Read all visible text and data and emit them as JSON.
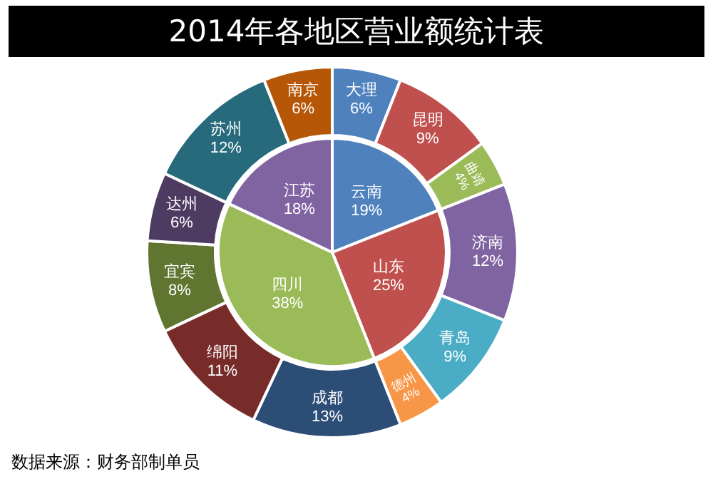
{
  "chart_data": [
    {
      "type": "pie",
      "title": "2014年各地区营业额统计表",
      "annotations": [
        "数据来源：财务部制单员"
      ],
      "legend": false,
      "categories": [
        "云南",
        "山东",
        "四川",
        "江苏"
      ],
      "values": [
        19,
        25,
        38,
        18
      ],
      "value_labels": [
        "19%",
        "25%",
        "38%",
        "18%"
      ],
      "colors": [
        "#4f81bd",
        "#c0504d",
        "#9bbb59",
        "#8064a2"
      ]
    },
    {
      "type": "donut",
      "legend": false,
      "categories": [
        "大理",
        "昆明",
        "曲靖",
        "济南",
        "青岛",
        "德州",
        "成都",
        "绵阳",
        "宜宾",
        "达州",
        "苏州",
        "南京"
      ],
      "values": [
        6,
        9,
        4,
        12,
        9,
        4,
        13,
        11,
        8,
        6,
        12,
        6
      ],
      "value_labels": [
        "6%",
        "9%",
        "4%",
        "12%",
        "9%",
        "4%",
        "13%",
        "11%",
        "8%",
        "6%",
        "12%",
        "6%"
      ],
      "colors": [
        "#4f81bd",
        "#c0504d",
        "#9bbb59",
        "#8064a2",
        "#4bacc6",
        "#f79646",
        "#2c4d75",
        "#772c2a",
        "#5f7530",
        "#4d3b62",
        "#276a7c",
        "#b65708"
      ]
    }
  ]
}
